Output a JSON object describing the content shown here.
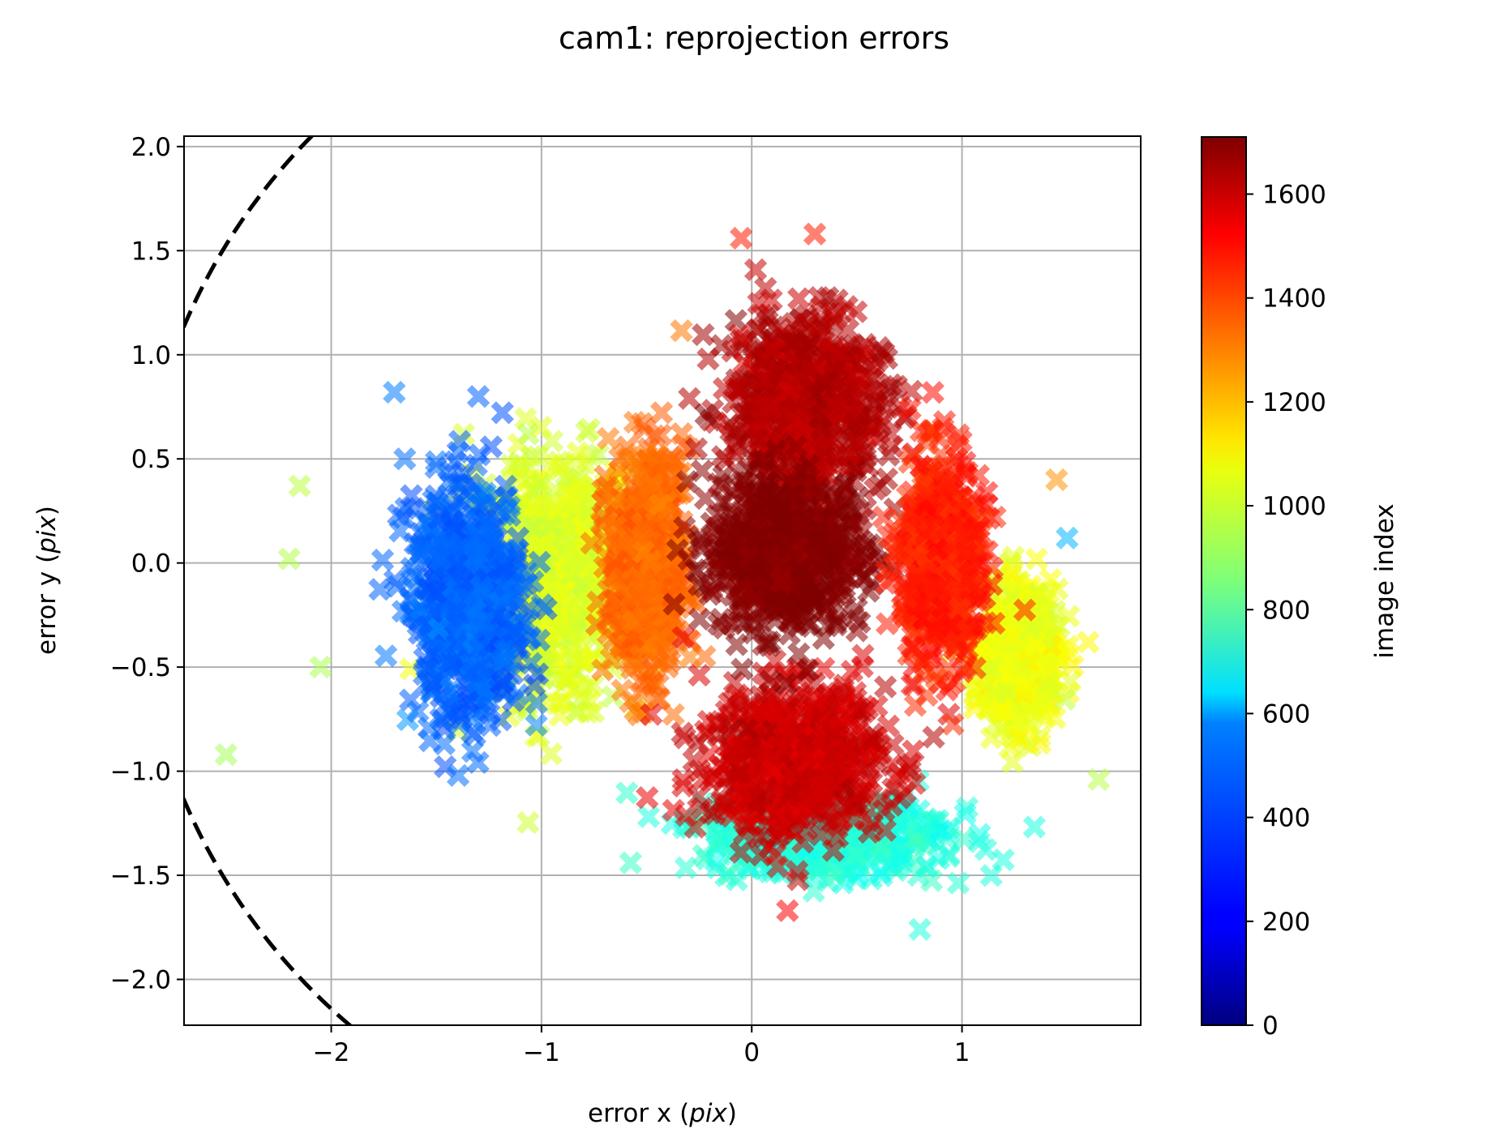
{
  "chart_data": {
    "type": "scatter",
    "title": "cam1: reprojection errors",
    "xlabel": "error x (pix)",
    "xlabel_parts": {
      "prefix": "error x (",
      "italic": "pix",
      "suffix": ")"
    },
    "ylabel": "error y (pix)",
    "ylabel_parts": {
      "prefix": "error y (",
      "italic": "pix",
      "suffix": ")"
    },
    "xlim": [
      -2.7,
      1.85
    ],
    "ylim": [
      -2.22,
      2.05
    ],
    "xticks": [
      -2,
      -1,
      0,
      1
    ],
    "xtick_labels": [
      "−2",
      "−1",
      "0",
      "1"
    ],
    "yticks": [
      2.0,
      1.5,
      1.0,
      0.5,
      0.0,
      -0.5,
      -1.0,
      -1.5,
      -2.0
    ],
    "ytick_labels": [
      "2.0",
      "1.5",
      "1.0",
      "0.5",
      "0.0",
      "−0.5",
      "−1.0",
      "−1.5",
      "−2.0"
    ],
    "grid": true,
    "marker": "x-filled",
    "colormap": "jet",
    "colorbar": {
      "label": "image index",
      "range": [
        0,
        1710
      ],
      "ticks": [
        0,
        200,
        400,
        600,
        800,
        1000,
        1200,
        1400,
        1600
      ],
      "tick_labels": [
        "0",
        "200",
        "400",
        "600",
        "800",
        "1000",
        "1200",
        "1400",
        "1600"
      ]
    },
    "dashed_circle": {
      "center": [
        0,
        0
      ],
      "radius": 2.93,
      "style": "dashed",
      "color": "#000000"
    },
    "clusters": [
      {
        "name": "images ~1100 (yellow-green)",
        "center": [
          -0.95,
          -0.05
        ],
        "spread": [
          0.32,
          0.48
        ],
        "image_index": 1010
      },
      {
        "name": "images ~1050 right lobe",
        "center": [
          1.28,
          -0.45
        ],
        "spread": [
          0.14,
          0.26
        ],
        "image_index": 1040
      },
      {
        "name": "images ~350 (blue)",
        "center": [
          -1.35,
          -0.2
        ],
        "spread": [
          0.22,
          0.45
        ],
        "image_index": 380
      },
      {
        "name": "images ~1300 (orange)",
        "center": [
          -0.5,
          0.0
        ],
        "spread": [
          0.14,
          0.42
        ],
        "image_index": 1320
      },
      {
        "name": "images ~700 (teal, bottom)",
        "center": [
          0.35,
          -1.3
        ],
        "spread": [
          0.45,
          0.15
        ],
        "image_index": 700
      },
      {
        "name": "images ~1580 (red, bottom)",
        "center": [
          0.2,
          -0.95
        ],
        "spread": [
          0.36,
          0.3
        ],
        "image_index": 1580
      },
      {
        "name": "images ~1620 (red, top)",
        "center": [
          0.25,
          0.75
        ],
        "spread": [
          0.3,
          0.35
        ],
        "image_index": 1620
      },
      {
        "name": "images ~1710 (dark red)",
        "center": [
          0.15,
          0.05
        ],
        "spread": [
          0.3,
          0.3
        ],
        "image_index": 1710
      },
      {
        "name": "images ~1400 (orange-red, right)",
        "center": [
          0.9,
          0.0
        ],
        "spread": [
          0.15,
          0.4
        ],
        "image_index": 1450
      }
    ],
    "outliers": [
      {
        "x": -2.5,
        "y": -0.92,
        "image_index": 920
      },
      {
        "x": -2.2,
        "y": 0.02,
        "image_index": 940
      },
      {
        "x": -2.05,
        "y": -0.5,
        "image_index": 930
      },
      {
        "x": -2.15,
        "y": 0.37,
        "image_index": 960
      },
      {
        "x": -1.7,
        "y": 0.82,
        "image_index": 420
      },
      {
        "x": -1.65,
        "y": 0.5,
        "image_index": 400
      },
      {
        "x": 0.8,
        "y": -1.76,
        "image_index": 700
      },
      {
        "x": 0.17,
        "y": -1.67,
        "image_index": 1500
      },
      {
        "x": -0.05,
        "y": 1.56,
        "image_index": 1450
      },
      {
        "x": 0.3,
        "y": 1.58,
        "image_index": 1450
      },
      {
        "x": 1.65,
        "y": -1.04,
        "image_index": 950
      },
      {
        "x": 1.6,
        "y": -0.38,
        "image_index": 1080
      },
      {
        "x": 1.5,
        "y": 0.12,
        "image_index": 520
      },
      {
        "x": 1.45,
        "y": 0.4,
        "image_index": 1250
      }
    ]
  }
}
